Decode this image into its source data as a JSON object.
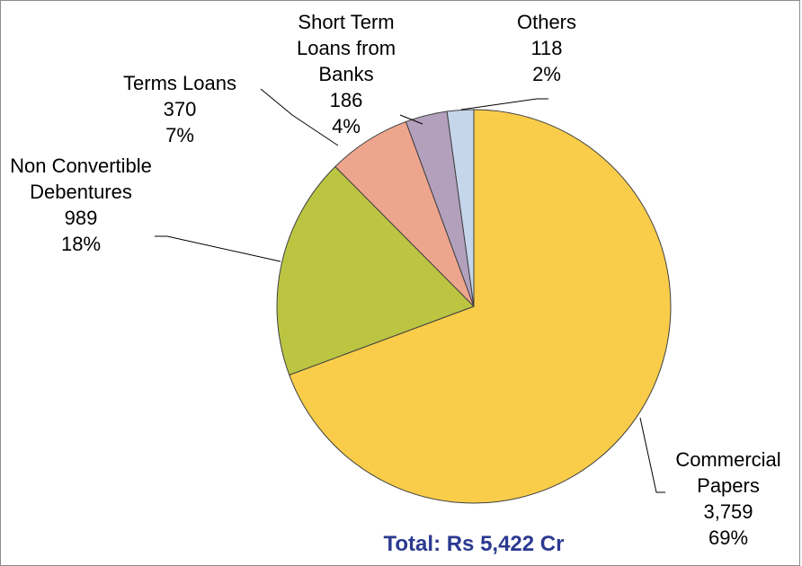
{
  "chart_data": {
    "type": "pie",
    "categories": [
      "Commercial Papers",
      "Non Convertible Debentures",
      "Terms Loans",
      "Short Term Loans from Banks",
      "Others"
    ],
    "values": [
      3759,
      989,
      370,
      186,
      118
    ],
    "value_labels": [
      "3,759",
      "989",
      "370",
      "186",
      "118"
    ],
    "percent_labels": [
      "69%",
      "18%",
      "7%",
      "4%",
      "2%"
    ],
    "colors": [
      "#f9cd4a",
      "#bbc542",
      "#eea58d",
      "#b3a0bd",
      "#c5d5ea"
    ],
    "annotation": "Total: Rs 5,422 Cr"
  }
}
